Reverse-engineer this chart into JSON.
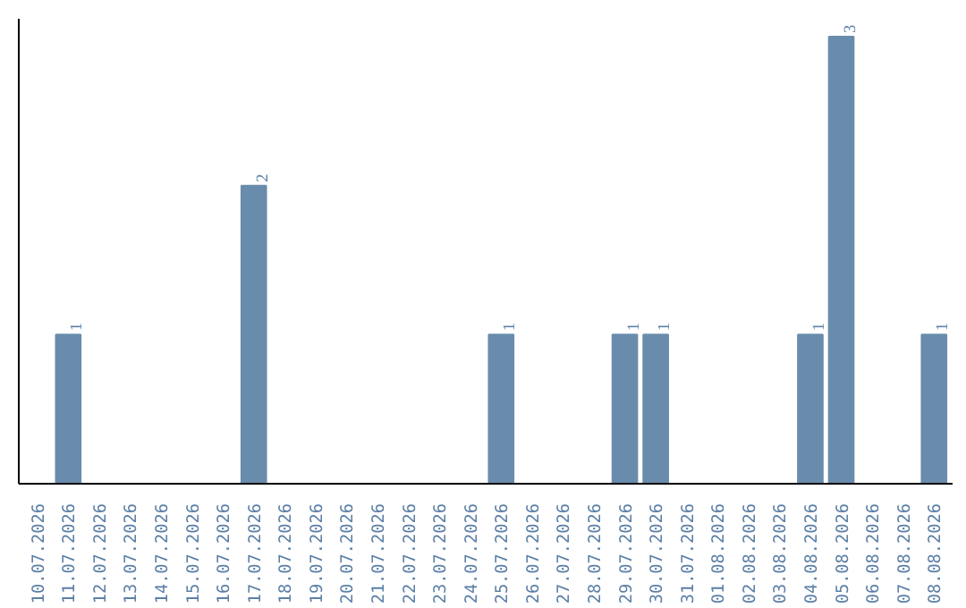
{
  "chart_data": {
    "type": "bar",
    "categories": [
      "10.07.2026",
      "11.07.2026",
      "12.07.2026",
      "13.07.2026",
      "14.07.2026",
      "15.07.2026",
      "16.07.2026",
      "17.07.2026",
      "18.07.2026",
      "19.07.2026",
      "20.07.2026",
      "21.07.2026",
      "22.07.2026",
      "23.07.2026",
      "24.07.2026",
      "25.07.2026",
      "26.07.2026",
      "27.07.2026",
      "28.07.2026",
      "29.07.2026",
      "30.07.2026",
      "31.07.2026",
      "01.08.2026",
      "02.08.2026",
      "03.08.2026",
      "04.08.2026",
      "05.08.2026",
      "06.08.2026",
      "07.08.2026",
      "08.08.2026"
    ],
    "values": [
      0,
      1,
      0,
      0,
      0,
      0,
      0,
      2,
      0,
      0,
      0,
      0,
      0,
      0,
      0,
      1,
      0,
      0,
      0,
      1,
      1,
      0,
      0,
      0,
      0,
      1,
      3,
      0,
      0,
      1
    ],
    "value_labels": [
      null,
      "1",
      null,
      null,
      null,
      null,
      null,
      "2",
      null,
      null,
      null,
      null,
      null,
      null,
      null,
      "1",
      null,
      null,
      null,
      "1",
      "1",
      null,
      null,
      null,
      null,
      "1",
      "3",
      null,
      null,
      "1"
    ],
    "color": "#6a8cac",
    "tick_labels": "x",
    "grid": false
  }
}
